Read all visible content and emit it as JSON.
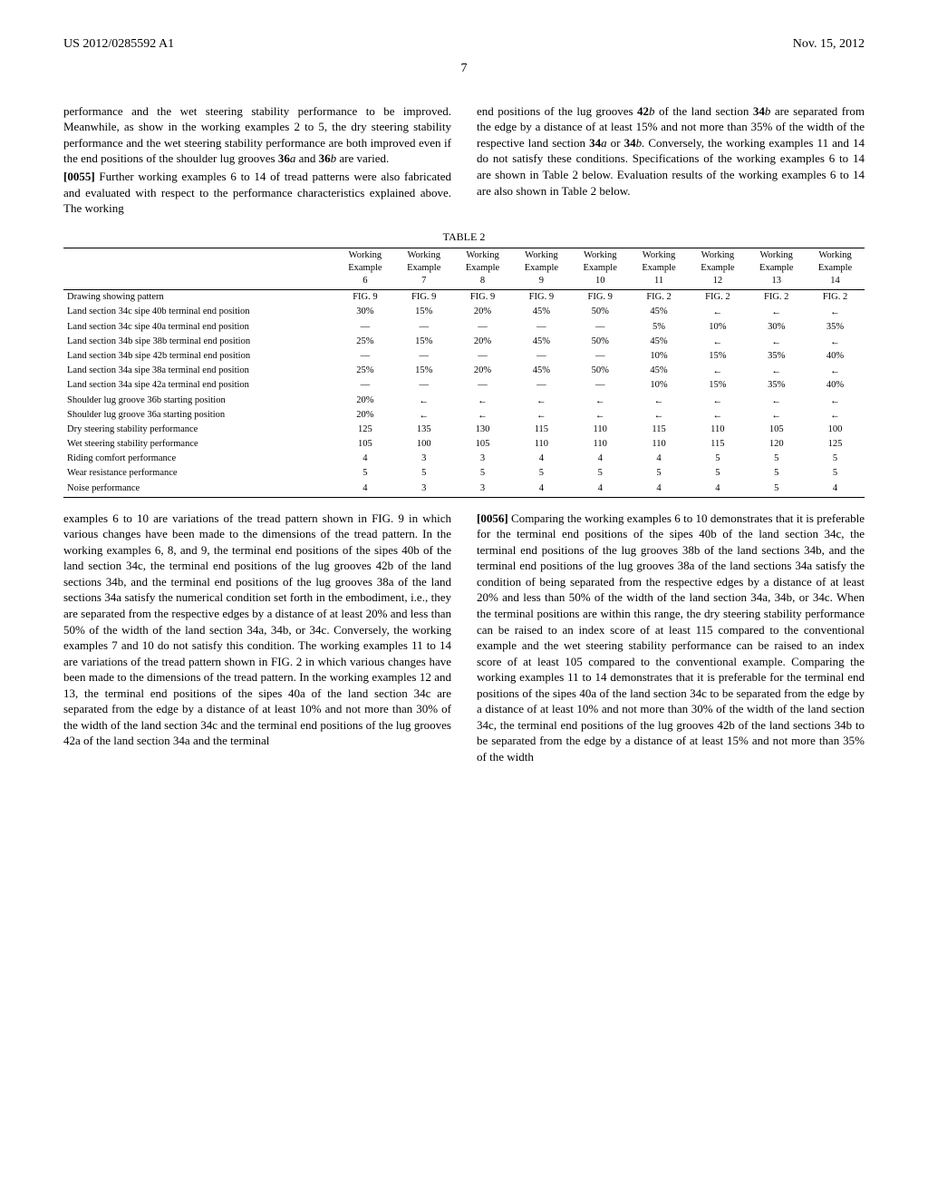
{
  "header": {
    "pub_number": "US 2012/0285592 A1",
    "pub_date": "Nov. 15, 2012"
  },
  "page_number": "7",
  "body": {
    "p1": "performance and the wet steering stability performance to be improved. Meanwhile, as show in the working examples 2 to 5, the dry steering stability performance and the wet steering stability performance are both improved even if the end positions of the shoulder lug grooves ",
    "p1_bold1": "36",
    "p1_ital1": "a",
    "p1_mid": " and ",
    "p1_bold2": "36",
    "p1_ital2": "b",
    "p1_end": " are varied.",
    "para55_num": "[0055]",
    "p2": " Further working examples 6 to 14 of tread patterns were also fabricated and evaluated with respect to the performance characteristics explained above. The working",
    "p3a": "end positions of the lug grooves ",
    "p3_n1": "42",
    "p3_i1": "b",
    "p3b": " of the land section ",
    "p3_n2": "34",
    "p3_i2": "b",
    "p3c": " are separated from the edge by a distance of at least 15% and not more than 35% of the width of the respective land section ",
    "p3_n3": "34",
    "p3_i3": "a",
    "p3_or": " or ",
    "p3_n4": "34",
    "p3_i4": "b.",
    "p3d": " Conversely, the working examples 11 and 14 do not satisfy these conditions. Specifications of the working examples 6 to 14 are shown in Table 2 below. Evaluation results of the working examples 6 to 14 are also shown in Table 2 below."
  },
  "table": {
    "caption": "TABLE 2",
    "col_headers": [
      "",
      "Working Example 6",
      "Working Example 7",
      "Working Example 8",
      "Working Example 9",
      "Working Example 10",
      "Working Example 11",
      "Working Example 12",
      "Working Example 13",
      "Working Example 14"
    ],
    "rows": [
      {
        "label": "Drawing showing pattern",
        "cells": [
          "FIG. 9",
          "FIG. 9",
          "FIG. 9",
          "FIG. 9",
          "FIG. 9",
          "FIG. 2",
          "FIG. 2",
          "FIG. 2",
          "FIG. 2"
        ]
      },
      {
        "label": "Land section 34c sipe 40b terminal end position",
        "cells": [
          "30%",
          "15%",
          "20%",
          "45%",
          "50%",
          "45%",
          "←",
          "←",
          "←"
        ]
      },
      {
        "label": "Land section 34c sipe 40a terminal end position",
        "cells": [
          "—",
          "—",
          "—",
          "—",
          "—",
          "5%",
          "10%",
          "30%",
          "35%"
        ]
      },
      {
        "label": "Land section 34b sipe 38b terminal end position",
        "cells": [
          "25%",
          "15%",
          "20%",
          "45%",
          "50%",
          "45%",
          "←",
          "←",
          "←"
        ]
      },
      {
        "label": "Land section 34b sipe 42b terminal end position",
        "cells": [
          "—",
          "—",
          "—",
          "—",
          "—",
          "10%",
          "15%",
          "35%",
          "40%"
        ]
      },
      {
        "label": "Land section 34a sipe 38a terminal end position",
        "cells": [
          "25%",
          "15%",
          "20%",
          "45%",
          "50%",
          "45%",
          "←",
          "←",
          "←"
        ]
      },
      {
        "label": "Land section 34a sipe 42a terminal end position",
        "cells": [
          "—",
          "—",
          "—",
          "—",
          "—",
          "10%",
          "15%",
          "35%",
          "40%"
        ]
      },
      {
        "label": "Shoulder lug groove 36b starting position",
        "cells": [
          "20%",
          "←",
          "←",
          "←",
          "←",
          "←",
          "←",
          "←",
          "←"
        ]
      },
      {
        "label": "Shoulder lug groove 36a starting position",
        "cells": [
          "20%",
          "←",
          "←",
          "←",
          "←",
          "←",
          "←",
          "←",
          "←"
        ]
      },
      {
        "label": "Dry steering stability performance",
        "cells": [
          "125",
          "135",
          "130",
          "115",
          "110",
          "115",
          "110",
          "105",
          "100"
        ]
      },
      {
        "label": "Wet steering stability performance",
        "cells": [
          "105",
          "100",
          "105",
          "110",
          "110",
          "110",
          "115",
          "120",
          "125"
        ]
      },
      {
        "label": "Riding comfort performance",
        "cells": [
          "4",
          "3",
          "3",
          "4",
          "4",
          "4",
          "5",
          "5",
          "5"
        ]
      },
      {
        "label": "Wear resistance performance",
        "cells": [
          "5",
          "5",
          "5",
          "5",
          "5",
          "5",
          "5",
          "5",
          "5"
        ]
      },
      {
        "label": "Noise performance",
        "cells": [
          "4",
          "3",
          "3",
          "4",
          "4",
          "4",
          "4",
          "5",
          "4"
        ]
      }
    ]
  },
  "lower": {
    "left": "examples 6 to 10 are variations of the tread pattern shown in FIG. 9 in which various changes have been made to the dimensions of the tread pattern. In the working examples 6, 8, and 9, the terminal end positions of the sipes 40b of the land section 34c, the terminal end positions of the lug grooves 42b of the land sections 34b, and the terminal end positions of the lug grooves 38a of the land sections 34a satisfy the numerical condition set forth in the embodiment, i.e., they are separated from the respective edges by a distance of at least 20% and less than 50% of the width of the land section 34a, 34b, or 34c. Conversely, the working examples 7 and 10 do not satisfy this condition. The working examples 11 to 14 are variations of the tread pattern shown in FIG. 2 in which various changes have been made to the dimensions of the tread pattern. In the working examples 12 and 13, the terminal end positions of the sipes 40a of the land section 34c are separated from the edge by a distance of at least 10% and not more than 30% of the width of the land section 34c and the terminal end positions of the lug grooves 42a of the land section 34a and the terminal",
    "para56_num": "[0056]",
    "right": " Comparing the working examples 6 to 10 demonstrates that it is preferable for the terminal end positions of the sipes 40b of the land section 34c, the terminal end positions of the lug grooves 38b of the land sections 34b, and the terminal end positions of the lug grooves 38a of the land sections 34a satisfy the condition of being separated from the respective edges by a distance of at least 20% and less than 50% of the width of the land section 34a, 34b, or 34c. When the terminal positions are within this range, the dry steering stability performance can be raised to an index score of at least 115 compared to the conventional example and the wet steering stability performance can be raised to an index score of at least 105 compared to the conventional example. Comparing the working examples 11 to 14 demonstrates that it is preferable for the terminal end positions of the sipes 40a of the land section 34c to be separated from the edge by a distance of at least 10% and not more than 30% of the width of the land section 34c, the terminal end positions of the lug grooves 42b of the land sections 34b to be separated from the edge by a distance of at least 15% and not more than 35% of the width"
  }
}
